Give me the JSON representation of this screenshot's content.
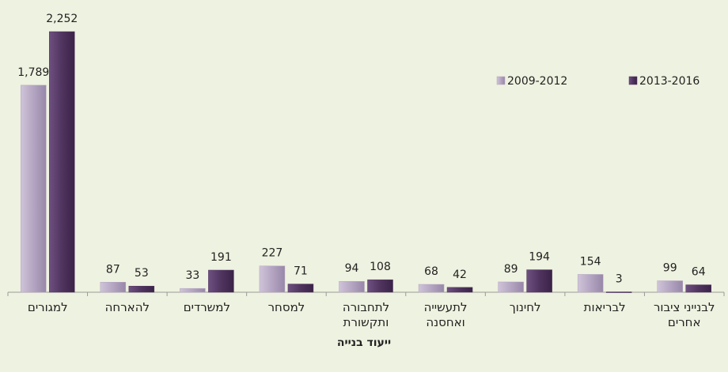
{
  "chart_data": {
    "type": "bar",
    "x_label": "ייעוד בנייה",
    "categories": [
      "למגורים",
      "להארחה",
      "למשרדים",
      "למסחר",
      "לתחבורה ותקשורת",
      "לתעשייה ואחסנה",
      "לחינוך",
      "לבריאות",
      "לבנייני ציבור אחרים"
    ],
    "series": [
      {
        "name": "2009-2012",
        "color": "#b4a5c2",
        "values": [
          1789,
          87,
          33,
          227,
          94,
          68,
          89,
          154,
          99
        ],
        "value_labels": [
          "1,789",
          "87",
          "33",
          "227",
          "94",
          "68",
          "89",
          "154",
          "99"
        ]
      },
      {
        "name": "2013-2016",
        "color": "#50345f",
        "values": [
          2252,
          53,
          191,
          71,
          108,
          42,
          194,
          3,
          64
        ],
        "value_labels": [
          "2,252",
          "53",
          "191",
          "71",
          "108",
          "42",
          "194",
          "3",
          "64"
        ]
      }
    ],
    "ylim": [
      0,
      2300
    ],
    "legend": "top-right"
  }
}
